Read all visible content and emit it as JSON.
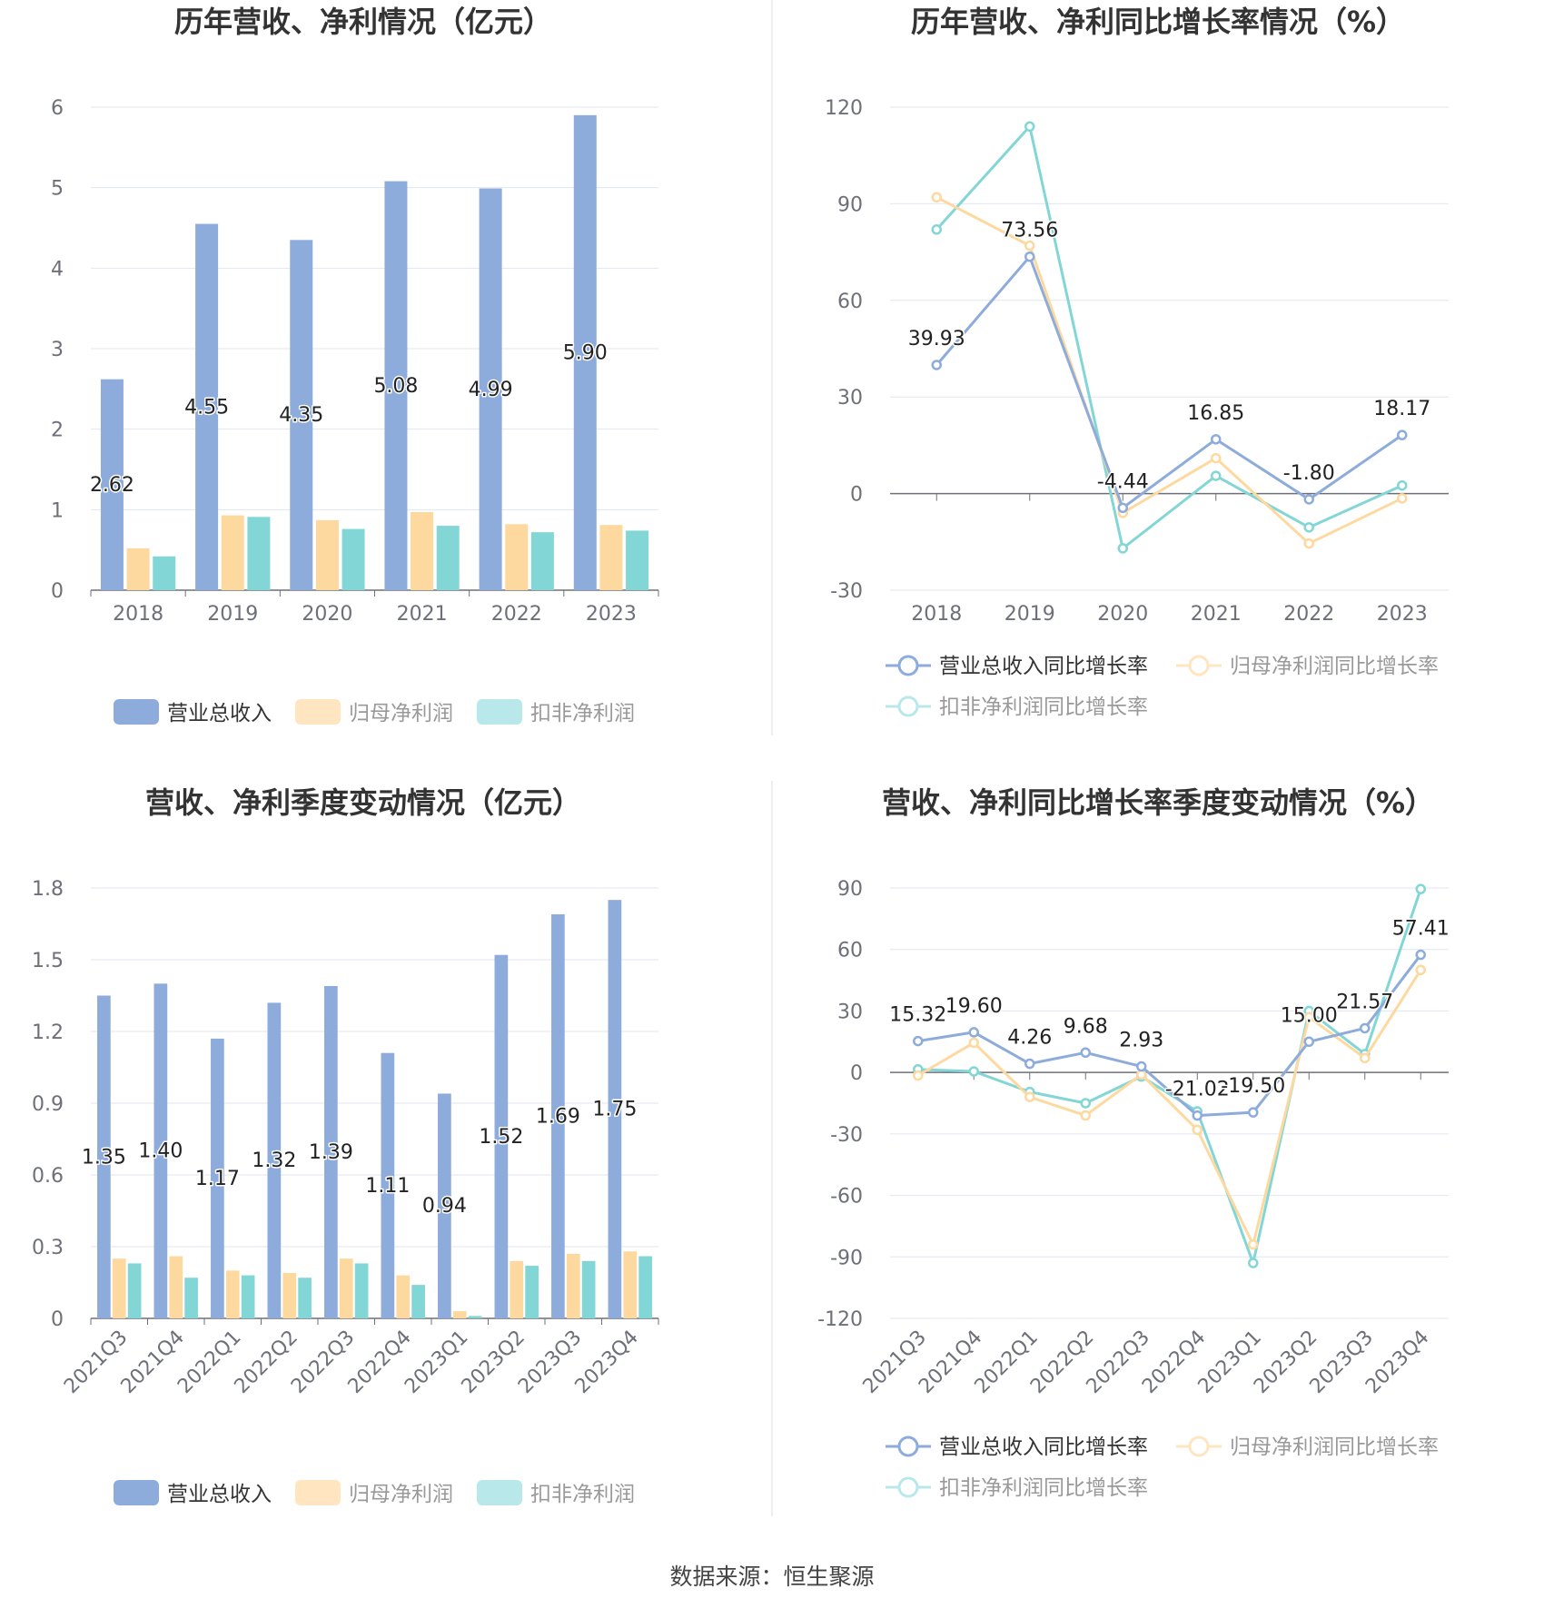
{
  "colors": {
    "revenue": "#8dabdb",
    "net_profit": "#fed99f",
    "deducted_profit": "#83d6d6",
    "revenue_legend": "#8dabdb",
    "net_profit_legend": "#ffe5c0",
    "deducted_profit_legend": "#b8e8e9"
  },
  "source": "数据来源：恒生聚源",
  "chart_data": [
    {
      "id": "annual-bar",
      "type": "bar",
      "title": "历年营收、净利情况（亿元）",
      "categories": [
        "2018",
        "2019",
        "2020",
        "2021",
        "2022",
        "2023"
      ],
      "ylim": [
        0,
        6
      ],
      "yticks": [
        "0",
        "1",
        "2",
        "3",
        "4",
        "5",
        "6"
      ],
      "grid": true,
      "legend_position": "bottom",
      "series": [
        {
          "name": "营业总收入",
          "key": "revenue",
          "values": [
            2.62,
            4.55,
            4.35,
            5.08,
            4.99,
            5.9
          ],
          "labels": [
            "2.62",
            "4.55",
            "4.35",
            "5.08",
            "4.99",
            "5.90"
          ]
        },
        {
          "name": "归母净利润",
          "key": "net_profit",
          "values": [
            0.52,
            0.93,
            0.87,
            0.97,
            0.82,
            0.81
          ]
        },
        {
          "name": "扣非净利润",
          "key": "deducted_profit",
          "values": [
            0.42,
            0.91,
            0.76,
            0.8,
            0.72,
            0.74
          ]
        }
      ]
    },
    {
      "id": "annual-line",
      "type": "line",
      "title": "历年营收、净利同比增长率情况（%）",
      "categories": [
        "2018",
        "2019",
        "2020",
        "2021",
        "2022",
        "2023"
      ],
      "ylim": [
        -30,
        120
      ],
      "yticks": [
        "-30",
        "0",
        "30",
        "60",
        "90",
        "120"
      ],
      "grid": true,
      "legend_position": "bottom",
      "series": [
        {
          "name": "营业总收入同比增长率",
          "key": "revenue",
          "values": [
            39.93,
            73.56,
            -4.44,
            16.85,
            -1.8,
            18.17
          ],
          "labels": [
            "39.93",
            "73.56",
            "-4.44",
            "16.85",
            "-1.80",
            "18.17"
          ]
        },
        {
          "name": "归母净利润同比增长率",
          "key": "net_profit",
          "values": [
            92.0,
            77.0,
            -6.0,
            11.0,
            -15.5,
            -1.5
          ]
        },
        {
          "name": "扣非净利润同比增长率",
          "key": "deducted_profit",
          "values": [
            82.0,
            114.0,
            -17.0,
            5.5,
            -10.5,
            2.5
          ]
        }
      ]
    },
    {
      "id": "quarterly-bar",
      "type": "bar",
      "title": "营收、净利季度变动情况（亿元）",
      "categories": [
        "2021Q3",
        "2021Q4",
        "2022Q1",
        "2022Q2",
        "2022Q3",
        "2022Q4",
        "2023Q1",
        "2023Q2",
        "2023Q3",
        "2023Q4"
      ],
      "ylim": [
        0,
        1.8
      ],
      "yticks": [
        "0",
        "0.3",
        "0.6",
        "0.9",
        "1.2",
        "1.5",
        "1.8"
      ],
      "grid": true,
      "legend_position": "bottom",
      "series": [
        {
          "name": "营业总收入",
          "key": "revenue",
          "values": [
            1.35,
            1.4,
            1.17,
            1.32,
            1.39,
            1.11,
            0.94,
            1.52,
            1.69,
            1.75
          ],
          "labels": [
            "1.35",
            "1.40",
            "1.17",
            "1.32",
            "1.39",
            "1.11",
            "0.94",
            "1.52",
            "1.69",
            "1.75"
          ]
        },
        {
          "name": "归母净利润",
          "key": "net_profit",
          "values": [
            0.25,
            0.26,
            0.2,
            0.19,
            0.25,
            0.18,
            0.03,
            0.24,
            0.27,
            0.28
          ]
        },
        {
          "name": "扣非净利润",
          "key": "deducted_profit",
          "values": [
            0.23,
            0.17,
            0.18,
            0.17,
            0.23,
            0.14,
            0.01,
            0.22,
            0.24,
            0.26
          ]
        }
      ]
    },
    {
      "id": "quarterly-line",
      "type": "line",
      "title": "营收、净利同比增长率季度变动情况（%）",
      "categories": [
        "2021Q3",
        "2021Q4",
        "2022Q1",
        "2022Q2",
        "2022Q3",
        "2022Q4",
        "2023Q1",
        "2023Q2",
        "2023Q3",
        "2023Q4"
      ],
      "ylim": [
        -120,
        90
      ],
      "yticks": [
        "-120",
        "-90",
        "-60",
        "-30",
        "0",
        "30",
        "60",
        "90"
      ],
      "grid": true,
      "legend_position": "bottom",
      "series": [
        {
          "name": "营业总收入同比增长率",
          "key": "revenue",
          "values": [
            15.32,
            19.6,
            4.26,
            9.68,
            2.93,
            -21.02,
            -19.5,
            15.0,
            21.57,
            57.41
          ],
          "labels": [
            "15.32",
            "19.60",
            "4.26",
            "9.68",
            "2.93",
            "-21.02",
            "-19.50",
            "15.00",
            "21.57",
            "57.41"
          ]
        },
        {
          "name": "归母净利润同比增长率",
          "key": "net_profit",
          "values": [
            -1.5,
            14.5,
            -12.0,
            -21.0,
            -1.0,
            -28.0,
            -84.0,
            27.0,
            7.0,
            50.0
          ]
        },
        {
          "name": "扣非净利润同比增长率",
          "key": "deducted_profit",
          "values": [
            1.5,
            0.5,
            -9.5,
            -15.0,
            -2.0,
            -19.0,
            -93.0,
            30.0,
            9.0,
            89.5
          ]
        }
      ]
    }
  ]
}
